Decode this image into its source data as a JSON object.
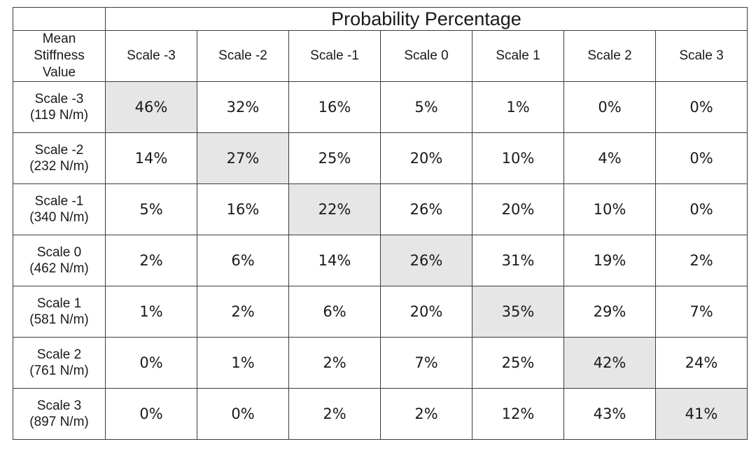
{
  "table": {
    "title": "Probability Percentage",
    "row_header_title": [
      "Mean",
      "Stiffness",
      "Value"
    ],
    "columns": [
      "Scale -3",
      "Scale -2",
      "Scale -1",
      "Scale 0",
      "Scale 1",
      "Scale 2",
      "Scale 3"
    ],
    "rows": [
      {
        "label": "Scale -3",
        "stiffness": "(119 N/m)",
        "values": [
          "46%",
          "32%",
          "16%",
          "5%",
          "1%",
          "0%",
          "0%"
        ]
      },
      {
        "label": "Scale -2",
        "stiffness": "(232 N/m)",
        "values": [
          "14%",
          "27%",
          "25%",
          "20%",
          "10%",
          "4%",
          "0%"
        ]
      },
      {
        "label": "Scale -1",
        "stiffness": "(340 N/m)",
        "values": [
          "5%",
          "16%",
          "22%",
          "26%",
          "20%",
          "10%",
          "0%"
        ]
      },
      {
        "label": "Scale 0",
        "stiffness": "(462 N/m)",
        "values": [
          "2%",
          "6%",
          "14%",
          "26%",
          "31%",
          "19%",
          "2%"
        ]
      },
      {
        "label": "Scale 1",
        "stiffness": "(581 N/m)",
        "values": [
          "1%",
          "2%",
          "6%",
          "20%",
          "35%",
          "29%",
          "7%"
        ]
      },
      {
        "label": "Scale 2",
        "stiffness": "(761 N/m)",
        "values": [
          "0%",
          "1%",
          "2%",
          "7%",
          "25%",
          "42%",
          "24%"
        ]
      },
      {
        "label": "Scale 3",
        "stiffness": "(897 N/m)",
        "values": [
          "0%",
          "0%",
          "2%",
          "2%",
          "12%",
          "43%",
          "41%"
        ]
      }
    ],
    "highlight_color": "#e6e6e6"
  }
}
